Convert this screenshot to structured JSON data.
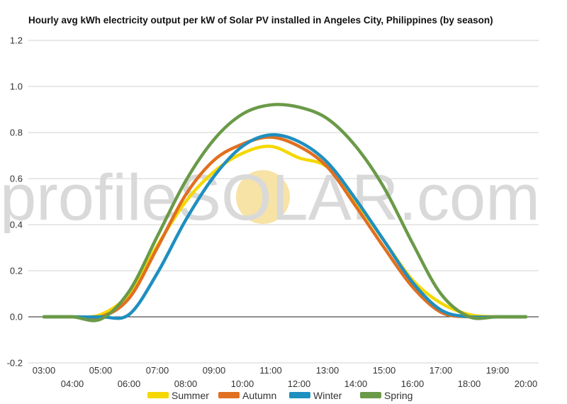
{
  "chart_data": {
    "type": "line",
    "title": "Hourly avg kWh electricity output per kW of Solar PV installed in Angeles City, Philippines (by season)",
    "xlabel": "",
    "ylabel": "",
    "ylim": [
      -0.2,
      1.2
    ],
    "yticks": [
      "-0.2",
      "0.0",
      "0.2",
      "0.4",
      "0.6",
      "0.8",
      "1.0",
      "1.2"
    ],
    "ytick_values": [
      -0.2,
      0.0,
      0.2,
      0.4,
      0.6,
      0.8,
      1.0,
      1.2
    ],
    "categories": [
      "03:00",
      "04:00",
      "05:00",
      "06:00",
      "07:00",
      "08:00",
      "09:00",
      "10:00",
      "11:00",
      "12:00",
      "13:00",
      "14:00",
      "15:00",
      "16:00",
      "17:00",
      "18:00",
      "19:00",
      "20:00"
    ],
    "grid": true,
    "legend_position": "bottom",
    "series": [
      {
        "name": "Summer",
        "color": "#f5d800",
        "values": [
          0,
          0,
          0.01,
          0.1,
          0.31,
          0.5,
          0.63,
          0.71,
          0.74,
          0.69,
          0.65,
          0.5,
          0.33,
          0.16,
          0.06,
          0.01,
          0,
          0
        ]
      },
      {
        "name": "Autumn",
        "color": "#e07020",
        "values": [
          0,
          0,
          0,
          0.08,
          0.3,
          0.53,
          0.68,
          0.75,
          0.78,
          0.74,
          0.65,
          0.48,
          0.3,
          0.13,
          0.02,
          0,
          0,
          0
        ]
      },
      {
        "name": "Winter",
        "color": "#1f8fc0",
        "values": [
          0,
          0,
          0,
          0.01,
          0.19,
          0.42,
          0.61,
          0.74,
          0.79,
          0.76,
          0.67,
          0.51,
          0.33,
          0.15,
          0.03,
          0,
          0,
          0
        ]
      },
      {
        "name": "Spring",
        "color": "#6a9a48",
        "values": [
          0,
          0,
          -0.01,
          0.11,
          0.35,
          0.59,
          0.77,
          0.88,
          0.92,
          0.91,
          0.86,
          0.74,
          0.56,
          0.32,
          0.1,
          0,
          0,
          0
        ]
      }
    ]
  },
  "watermark": {
    "text": "profileSOLAR.com",
    "sun_color": "#f7e3a6"
  }
}
